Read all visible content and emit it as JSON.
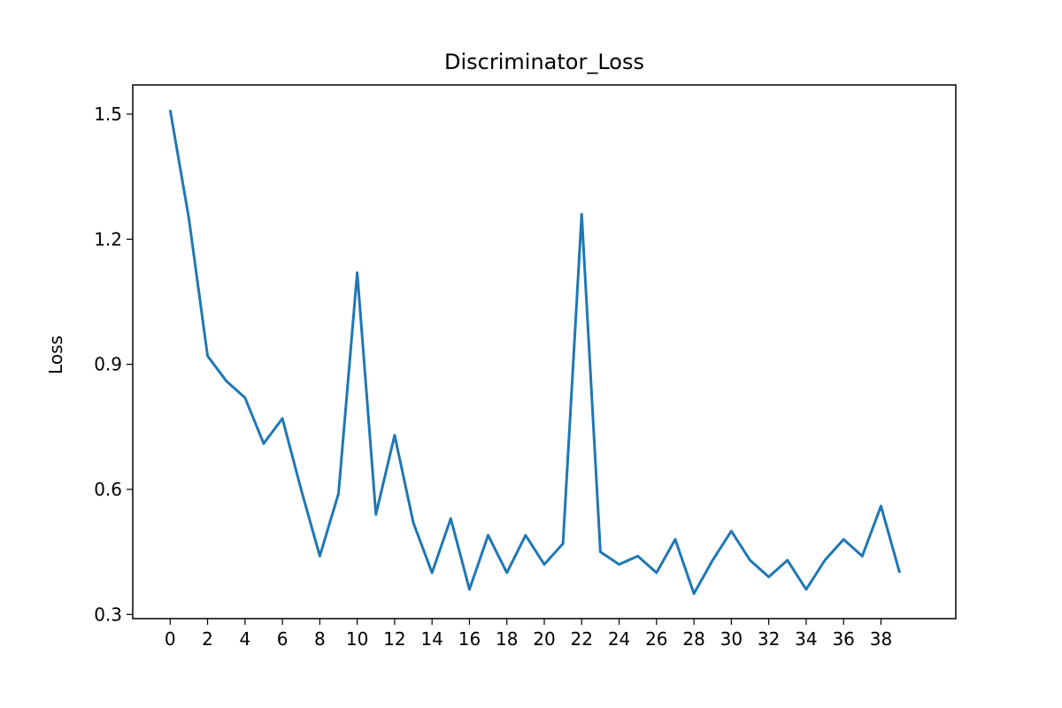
{
  "chart_data": {
    "type": "line",
    "title": "Discriminator_Loss",
    "xlabel": "",
    "ylabel": "Loss",
    "x": [
      0,
      1,
      2,
      3,
      4,
      5,
      6,
      7,
      8,
      9,
      10,
      11,
      12,
      13,
      14,
      15,
      16,
      17,
      18,
      19,
      20,
      21,
      22,
      23,
      24,
      25,
      26,
      27,
      28,
      29,
      30,
      31,
      32,
      33,
      34,
      35,
      36,
      37,
      38,
      39
    ],
    "series": [
      {
        "values": [
          1.51,
          1.25,
          0.92,
          0.86,
          0.82,
          0.71,
          0.77,
          0.6,
          0.44,
          0.59,
          1.12,
          0.54,
          0.73,
          0.52,
          0.4,
          0.53,
          0.36,
          0.49,
          0.4,
          0.49,
          0.42,
          0.47,
          1.26,
          0.45,
          0.42,
          0.44,
          0.4,
          0.48,
          0.35,
          0.43,
          0.5,
          0.43,
          0.39,
          0.43,
          0.36,
          0.43,
          0.48,
          0.44,
          0.56,
          0.4
        ],
        "color": "#1f77b4"
      }
    ],
    "xlim": [
      -2,
      42
    ],
    "ylim": [
      0.29,
      1.57
    ],
    "xticks": [
      0,
      2,
      4,
      6,
      8,
      10,
      12,
      14,
      16,
      18,
      20,
      22,
      24,
      26,
      28,
      30,
      32,
      34,
      36,
      38
    ],
    "yticks": [
      0.3,
      0.6,
      0.9,
      1.2,
      1.5
    ],
    "ytick_labels": [
      "0.3",
      "0.6",
      "0.9",
      "1.2",
      "1.5"
    ],
    "grid": false,
    "legend": "none"
  }
}
